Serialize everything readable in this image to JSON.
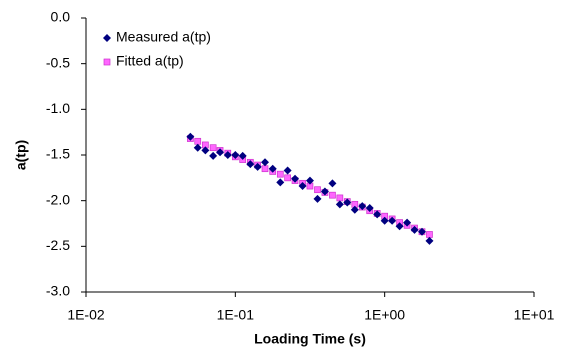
{
  "chart_data": {
    "type": "scatter",
    "log_x": true,
    "xlabel": "Loading Time (s)",
    "ylabel": "a(tp)",
    "x": [
      0.05,
      0.056,
      0.063,
      0.071,
      0.079,
      0.089,
      0.1,
      0.112,
      0.126,
      0.141,
      0.158,
      0.178,
      0.2,
      0.224,
      0.251,
      0.282,
      0.316,
      0.355,
      0.398,
      0.447,
      0.501,
      0.562,
      0.631,
      0.708,
      0.794,
      0.891,
      1.0,
      1.122,
      1.259,
      1.413,
      1.585,
      1.778,
      1.995
    ],
    "series": [
      {
        "name": "Measured a(tp)",
        "color": "#000080",
        "marker": "diamond",
        "values": [
          -1.3,
          -1.42,
          -1.45,
          -1.51,
          -1.47,
          -1.5,
          -1.5,
          -1.51,
          -1.6,
          -1.63,
          -1.58,
          -1.65,
          -1.8,
          -1.67,
          -1.76,
          -1.84,
          -1.78,
          -1.98,
          -1.9,
          -1.81,
          -2.04,
          -2.02,
          -2.1,
          -2.06,
          -2.08,
          -2.15,
          -2.22,
          -2.22,
          -2.28,
          -2.24,
          -2.32,
          -2.34,
          -2.44
        ]
      },
      {
        "name": "Fitted a(tp)",
        "color": "#ff66ff",
        "marker": "square",
        "values": [
          -1.32,
          -1.35,
          -1.39,
          -1.42,
          -1.45,
          -1.48,
          -1.52,
          -1.55,
          -1.58,
          -1.61,
          -1.65,
          -1.68,
          -1.71,
          -1.75,
          -1.78,
          -1.81,
          -1.84,
          -1.88,
          -1.91,
          -1.94,
          -1.97,
          -2.01,
          -2.04,
          -2.07,
          -2.11,
          -2.14,
          -2.17,
          -2.2,
          -2.24,
          -2.27,
          -2.3,
          -2.34,
          -2.37
        ]
      }
    ],
    "xlim": [
      0.01,
      10
    ],
    "xticks": [
      {
        "value": 0.01,
        "label": "1E-02"
      },
      {
        "value": 0.1,
        "label": "1E-01"
      },
      {
        "value": 1,
        "label": "1E+00"
      },
      {
        "value": 10,
        "label": "1E+01"
      }
    ],
    "ylim": [
      -3,
      0
    ],
    "yticks": [
      {
        "value": 0,
        "label": "0.0"
      },
      -0.5,
      {
        "value": -1,
        "label": "-1.0"
      },
      -1.5,
      {
        "value": -2,
        "label": "-2.0"
      },
      -2.5,
      {
        "value": -3,
        "label": "-3.0"
      }
    ],
    "legend": "upper left"
  }
}
